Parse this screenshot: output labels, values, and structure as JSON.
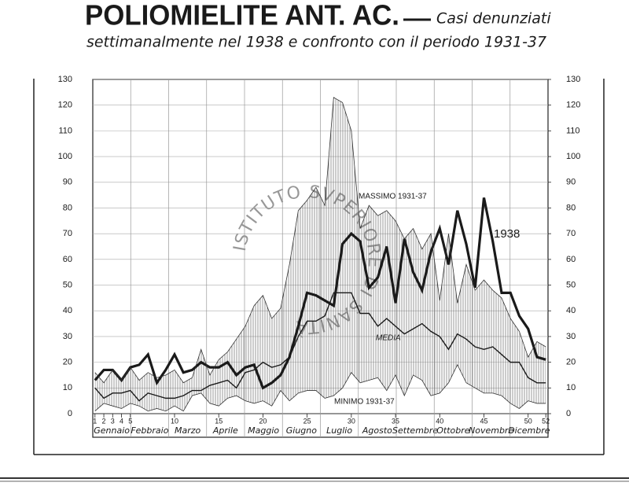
{
  "chart_data": {
    "type": "line",
    "title": "POLIOMIELITE ANT. AC.",
    "subtitle": [
      "Casi denunziati",
      "settimanalmente nel 1938 e confronto con il periodo 1931-37"
    ],
    "watermark": "ISTITUTO SVPERIORE DI SANITÀ",
    "months": [
      "Gennaio",
      "Febbraio",
      "Marzo",
      "Aprile",
      "Maggio",
      "Giugno",
      "Luglio",
      "Agosto",
      "Settembre",
      "Ottobre",
      "Novembre",
      "Dicembre"
    ],
    "x": [
      1,
      2,
      3,
      4,
      5,
      6,
      7,
      8,
      9,
      10,
      11,
      12,
      13,
      14,
      15,
      16,
      17,
      18,
      19,
      20,
      21,
      22,
      23,
      24,
      25,
      26,
      27,
      28,
      29,
      30,
      31,
      32,
      33,
      34,
      35,
      36,
      37,
      38,
      39,
      40,
      41,
      42,
      43,
      44,
      45,
      46,
      47,
      48,
      49,
      50,
      51,
      52
    ],
    "xlim": [
      0.75,
      52.25
    ],
    "xticks": [
      1,
      2,
      3,
      4,
      5,
      10,
      15,
      20,
      25,
      30,
      35,
      40,
      45,
      50,
      52
    ],
    "ylim": [
      0,
      130
    ],
    "yticks": [
      0,
      10,
      20,
      30,
      40,
      50,
      60,
      70,
      80,
      90,
      100,
      110,
      120,
      130
    ],
    "y2lim": [
      0,
      130
    ],
    "y2ticks": [
      0,
      10,
      20,
      30,
      40,
      50,
      60,
      70,
      80,
      90,
      100,
      110,
      120,
      130
    ],
    "grid": true,
    "band_between": [
      2,
      3
    ],
    "series": [
      {
        "name": "1938",
        "color": "#1a1a1a",
        "width": 3.2,
        "values": [
          13,
          17,
          17,
          13,
          18,
          19,
          23,
          12,
          17,
          23,
          16,
          17,
          20,
          18,
          18,
          20,
          15,
          18,
          19,
          10,
          12,
          15,
          22,
          34,
          47,
          46,
          44,
          42,
          66,
          70,
          67,
          49,
          53,
          65,
          43,
          68,
          55,
          48,
          63,
          72,
          58,
          79,
          66,
          49,
          84,
          67,
          47,
          47,
          38,
          33,
          22,
          21
        ]
      },
      {
        "name": "MEDIA",
        "color": "#1a1a1a",
        "width": 1.4,
        "values": [
          10,
          6,
          8,
          8,
          9,
          5,
          8,
          7,
          6,
          6,
          7,
          9,
          9,
          11,
          12,
          13,
          10,
          16,
          17,
          20,
          18,
          19,
          22,
          30,
          36,
          36,
          38,
          47,
          47,
          47,
          39,
          39,
          34,
          37,
          34,
          31,
          33,
          35,
          32,
          30,
          25,
          31,
          29,
          26,
          25,
          26,
          23,
          20,
          20,
          14,
          12,
          12
        ]
      },
      {
        "name": "MASSIMO 1931-37",
        "color": "#333333",
        "width": 0.8,
        "values": [
          16,
          12,
          17,
          13,
          18,
          13,
          16,
          14,
          15,
          17,
          12,
          14,
          25,
          15,
          21,
          24,
          29,
          34,
          42,
          46,
          37,
          41,
          58,
          79,
          83,
          88,
          81,
          123,
          121,
          110,
          72,
          81,
          77,
          79,
          75,
          68,
          72,
          64,
          70,
          44,
          70,
          43,
          58,
          48,
          52,
          48,
          45,
          37,
          32,
          22,
          28,
          26
        ]
      },
      {
        "name": "MINIMO 1931-37",
        "color": "#333333",
        "width": 0.8,
        "values": [
          1,
          4,
          3,
          2,
          4,
          3,
          1,
          2,
          1,
          3,
          1,
          7,
          8,
          4,
          3,
          6,
          7,
          5,
          4,
          5,
          3,
          9,
          5,
          8,
          9,
          9,
          6,
          7,
          10,
          16,
          12,
          13,
          14,
          9,
          15,
          7,
          15,
          13,
          7,
          8,
          12,
          19,
          12,
          10,
          8,
          8,
          7,
          4,
          2,
          5,
          4,
          4
        ]
      }
    ]
  }
}
